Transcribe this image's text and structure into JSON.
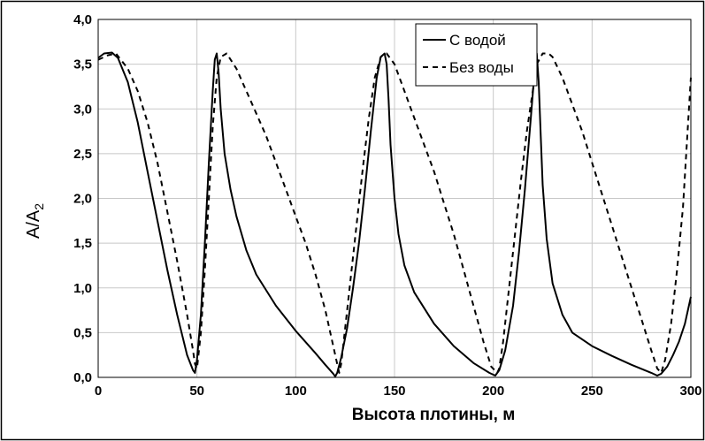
{
  "chart_data": {
    "type": "line",
    "title": "",
    "xlabel": "Высота плотины, м",
    "ylabel": {
      "main": "A/A",
      "sub": "2"
    },
    "xlim": [
      0,
      300
    ],
    "ylim": [
      0,
      4
    ],
    "xticks": [
      0,
      50,
      100,
      150,
      200,
      250,
      300
    ],
    "yticks": [
      0,
      0.5,
      1,
      1.5,
      2,
      2.5,
      3,
      3.5,
      4
    ],
    "xtick_labels": [
      "0",
      "50",
      "100",
      "150",
      "200",
      "250",
      "300"
    ],
    "ytick_labels": [
      "0,0",
      "0,5",
      "1,0",
      "1,5",
      "2,0",
      "2,5",
      "3,0",
      "3,5",
      "4,0"
    ],
    "grid": true,
    "legend_position": "top-right",
    "series": [
      {
        "name": "С водой",
        "style": "solid",
        "color": "#000000",
        "x": [
          0,
          3,
          7,
          10,
          15,
          20,
          25,
          30,
          35,
          40,
          45,
          48,
          49,
          50,
          52,
          54,
          56,
          58,
          59,
          60,
          61,
          62,
          64,
          67,
          70,
          75,
          80,
          90,
          100,
          110,
          115,
          119,
          120,
          121,
          123,
          126,
          129,
          132,
          135,
          138,
          141,
          143,
          145,
          146,
          147,
          148,
          150,
          152,
          155,
          160,
          170,
          180,
          190,
          198,
          201,
          203,
          206,
          210,
          213,
          216,
          219,
          221,
          222,
          223,
          224,
          225,
          227,
          230,
          235,
          240,
          250,
          260,
          270,
          280,
          283,
          285,
          288,
          291,
          294,
          297,
          300
        ],
        "y": [
          3.57,
          3.62,
          3.63,
          3.57,
          3.3,
          2.85,
          2.3,
          1.75,
          1.2,
          0.7,
          0.25,
          0.08,
          0.05,
          0.2,
          0.7,
          1.5,
          2.4,
          3.2,
          3.55,
          3.62,
          3.4,
          3.0,
          2.5,
          2.1,
          1.8,
          1.42,
          1.15,
          0.8,
          0.52,
          0.27,
          0.14,
          0.04,
          0.01,
          0.05,
          0.22,
          0.55,
          1.0,
          1.5,
          2.1,
          2.75,
          3.35,
          3.58,
          3.62,
          3.5,
          3.1,
          2.6,
          2.0,
          1.6,
          1.25,
          0.95,
          0.6,
          0.35,
          0.16,
          0.05,
          0.02,
          0.08,
          0.3,
          0.8,
          1.4,
          2.1,
          2.9,
          3.45,
          3.62,
          3.3,
          2.7,
          2.15,
          1.55,
          1.05,
          0.7,
          0.5,
          0.35,
          0.24,
          0.14,
          0.05,
          0.02,
          0.04,
          0.12,
          0.25,
          0.4,
          0.6,
          0.9
        ]
      },
      {
        "name": "Без воды",
        "style": "dashed",
        "color": "#000000",
        "x": [
          0,
          5,
          9,
          15,
          20,
          25,
          30,
          35,
          40,
          45,
          48,
          49,
          50,
          52,
          54,
          56,
          58,
          60,
          62,
          65,
          70,
          75,
          80,
          85,
          90,
          95,
          100,
          105,
          110,
          115,
          118,
          121,
          122,
          123,
          125,
          128,
          131,
          134,
          137,
          140,
          143,
          145,
          146,
          150,
          155,
          160,
          165,
          170,
          175,
          180,
          185,
          190,
          195,
          199,
          202,
          203,
          205,
          208,
          211,
          214,
          217,
          220,
          222,
          225,
          228,
          230,
          235,
          240,
          245,
          250,
          255,
          260,
          265,
          270,
          275,
          280,
          283,
          285,
          287,
          290,
          293,
          296,
          300
        ],
        "y": [
          3.55,
          3.6,
          3.62,
          3.45,
          3.2,
          2.85,
          2.4,
          1.85,
          1.3,
          0.7,
          0.3,
          0.15,
          0.1,
          0.5,
          1.2,
          2.0,
          2.8,
          3.35,
          3.58,
          3.62,
          3.45,
          3.2,
          2.95,
          2.7,
          2.4,
          2.1,
          1.8,
          1.5,
          1.15,
          0.75,
          0.45,
          0.15,
          0.05,
          0.15,
          0.55,
          1.15,
          1.75,
          2.35,
          2.9,
          3.35,
          3.58,
          3.62,
          3.62,
          3.5,
          3.2,
          2.9,
          2.6,
          2.3,
          1.95,
          1.6,
          1.2,
          0.8,
          0.4,
          0.12,
          0.05,
          0.1,
          0.4,
          1.0,
          1.6,
          2.2,
          2.75,
          3.2,
          3.5,
          3.62,
          3.62,
          3.58,
          3.35,
          3.05,
          2.75,
          2.4,
          2.05,
          1.7,
          1.35,
          1.0,
          0.65,
          0.3,
          0.1,
          0.05,
          0.2,
          0.6,
          1.2,
          1.9,
          3.35
        ]
      }
    ]
  }
}
